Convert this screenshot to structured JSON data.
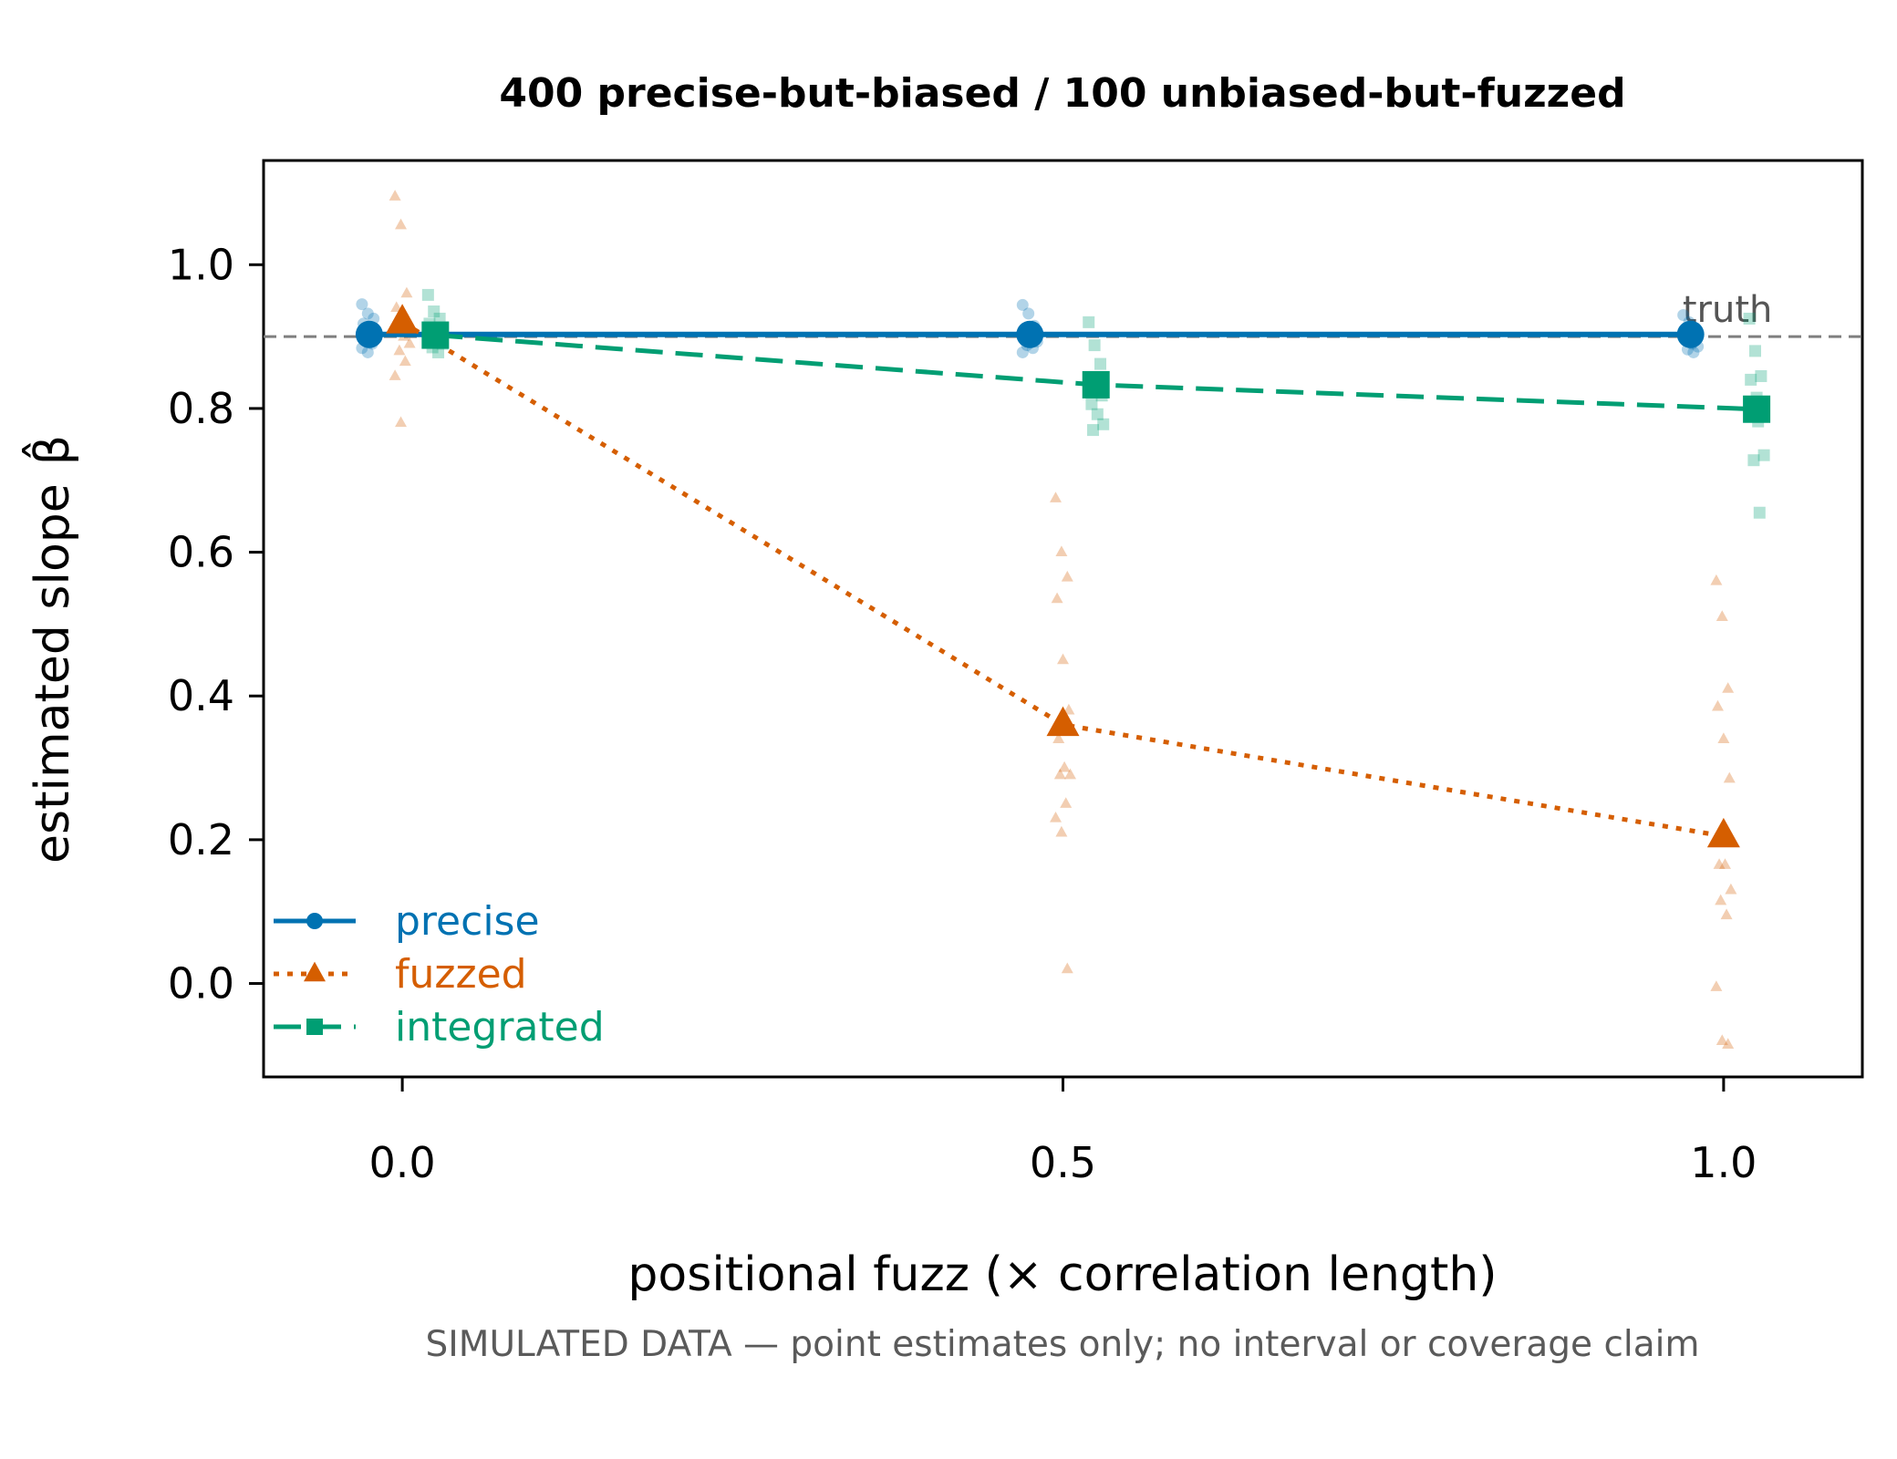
{
  "chart_data": {
    "type": "scatter",
    "title": "400 precise-but-biased / 100 unbiased-but-fuzzed",
    "xlabel": "positional fuzz  (× correlation length)",
    "ylabel": "estimated slope",
    "ylabel_symbol": "β̂",
    "note": "SIMULATED DATA — point estimates only; no interval or coverage claim",
    "x_ticks": [
      0.0,
      0.5,
      1.0
    ],
    "x_tick_labels": [
      "0.0",
      "0.5",
      "1.0"
    ],
    "y_ticks": [
      0.0,
      0.2,
      0.4,
      0.6,
      0.8,
      1.0
    ],
    "y_tick_labels": [
      "0.0",
      "0.2",
      "0.4",
      "0.6",
      "0.8",
      "1.0"
    ],
    "xlim": [
      -0.105,
      1.105
    ],
    "ylim": [
      -0.13,
      1.145
    ],
    "grid": false,
    "legend_position": "bottom-left",
    "reference_line": {
      "y": 0.9,
      "label": "truth",
      "color": "#7f7f7f"
    },
    "categories": [
      0.0,
      0.5,
      1.0
    ],
    "series": [
      {
        "name": "precise",
        "color": "#0072b2",
        "marker": "circle",
        "line": "solid",
        "offset": -0.025,
        "values": [
          0.903,
          0.903,
          0.903
        ],
        "replicates": [
          [
            0.945,
            0.932,
            0.925,
            0.918,
            0.912,
            0.908,
            0.905,
            0.902,
            0.898,
            0.893,
            0.89,
            0.884,
            0.878
          ],
          [
            0.944,
            0.932,
            0.915,
            0.91,
            0.907,
            0.904,
            0.9,
            0.896,
            0.893,
            0.888,
            0.884,
            0.878
          ],
          [
            0.93,
            0.92,
            0.912,
            0.906,
            0.902,
            0.898,
            0.894,
            0.89,
            0.886,
            0.882,
            0.878
          ]
        ]
      },
      {
        "name": "fuzzed",
        "color": "#d55e00",
        "marker": "triangle",
        "line": "dotted",
        "offset": 0.0,
        "values": [
          0.92,
          0.36,
          0.205
        ],
        "replicates": [
          [
            1.095,
            1.055,
            0.96,
            0.94,
            0.93,
            0.92,
            0.91,
            0.9,
            0.89,
            0.88,
            0.865,
            0.845,
            0.78
          ],
          [
            0.675,
            0.6,
            0.565,
            0.535,
            0.45,
            0.38,
            0.34,
            0.3,
            0.29,
            0.29,
            0.25,
            0.23,
            0.21,
            0.02
          ],
          [
            0.56,
            0.51,
            0.41,
            0.385,
            0.34,
            0.285,
            0.165,
            0.165,
            0.13,
            0.115,
            0.095,
            -0.005,
            -0.08,
            -0.085
          ]
        ]
      },
      {
        "name": "integrated",
        "color": "#009e73",
        "marker": "square",
        "line": "dashed",
        "offset": 0.025,
        "values": [
          0.902,
          0.833,
          0.799
        ],
        "replicates": [
          [
            0.958,
            0.935,
            0.925,
            0.918,
            0.91,
            0.905,
            0.9,
            0.895,
            0.89,
            0.885,
            0.878
          ],
          [
            0.92,
            0.888,
            0.862,
            0.842,
            0.826,
            0.818,
            0.806,
            0.792,
            0.778,
            0.77
          ],
          [
            0.925,
            0.88,
            0.845,
            0.84,
            0.815,
            0.8,
            0.795,
            0.782,
            0.735,
            0.728,
            0.655
          ]
        ]
      }
    ]
  }
}
